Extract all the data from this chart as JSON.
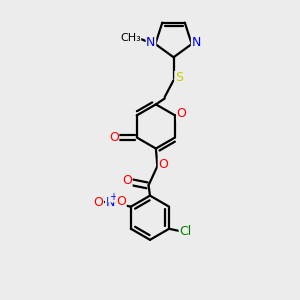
{
  "bg_color": "#ececec",
  "bond_color": "#000000",
  "bond_width": 1.6,
  "atom_colors": {
    "N": "#0000ff",
    "O": "#ff0000",
    "S": "#cccc00",
    "Cl": "#008000",
    "C": "#000000"
  }
}
